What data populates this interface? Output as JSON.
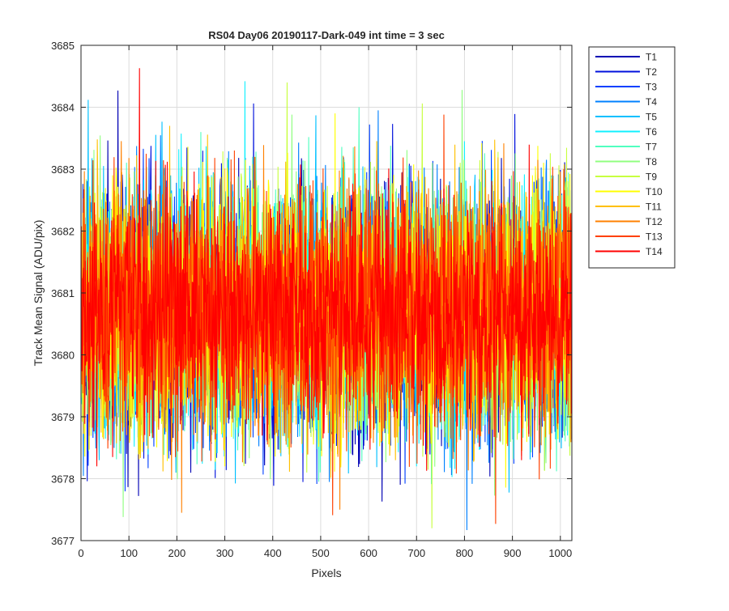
{
  "chart_data": {
    "type": "line",
    "title": "RS04 Day06 20190117-Dark-049 int time = 3 sec",
    "xlabel": "Pixels",
    "ylabel": "Track Mean Signal (ADU/pix)",
    "xlim": [
      0,
      1024
    ],
    "ylim": [
      3677,
      3685
    ],
    "xticks": [
      "0",
      "100",
      "200",
      "300",
      "400",
      "500",
      "600",
      "700",
      "800",
      "900",
      "1000"
    ],
    "yticks": [
      "3677",
      "3678",
      "3679",
      "3680",
      "3681",
      "3682",
      "3683",
      "3684",
      "3685"
    ],
    "grid": true,
    "legend_position": "outside-top-right",
    "series_points": 1024,
    "series": [
      {
        "name": "T1",
        "color": "#0000b4",
        "mean": 3680.7,
        "std": 1.0,
        "spikes": [
          [
            77,
            3684.27
          ],
          [
            95,
            3678.4
          ],
          [
            120,
            3677.72
          ]
        ]
      },
      {
        "name": "T2",
        "color": "#0010dc",
        "mean": 3680.7,
        "std": 1.0,
        "spikes": [
          [
            360,
            3684.06
          ],
          [
            650,
            3683.73
          ],
          [
            905,
            3683.89
          ]
        ]
      },
      {
        "name": "T3",
        "color": "#0040ff",
        "mean": 3680.7,
        "std": 1.0,
        "spikes": [
          [
            140,
            3678.17
          ],
          [
            600,
            3679.0
          ]
        ]
      },
      {
        "name": "T4",
        "color": "#0080ff",
        "mean": 3680.7,
        "std": 1.0,
        "spikes": [
          [
            805,
            3677.17
          ],
          [
            620,
            3683.95
          ]
        ]
      },
      {
        "name": "T5",
        "color": "#00c0ff",
        "mean": 3680.7,
        "std": 1.0,
        "spikes": [
          [
            15,
            3684.12
          ],
          [
            490,
            3683.87
          ]
        ]
      },
      {
        "name": "T6",
        "color": "#10f0ff",
        "mean": 3680.7,
        "std": 1.0,
        "spikes": [
          [
            342,
            3684.42
          ],
          [
            700,
            3678.2
          ]
        ]
      },
      {
        "name": "T7",
        "color": "#50ffc0",
        "mean": 3680.7,
        "std": 1.0,
        "spikes": [
          [
            250,
            3683.6
          ],
          [
            580,
            3684.0
          ]
        ]
      },
      {
        "name": "T8",
        "color": "#90ff80",
        "mean": 3680.7,
        "std": 1.0,
        "spikes": [
          [
            88,
            3677.38
          ],
          [
            795,
            3684.28
          ],
          [
            440,
            3683.88
          ]
        ]
      },
      {
        "name": "T9",
        "color": "#c8ff40",
        "mean": 3680.7,
        "std": 1.0,
        "spikes": [
          [
            732,
            3677.2
          ],
          [
            712,
            3684.06
          ],
          [
            430,
            3684.4
          ]
        ]
      },
      {
        "name": "T10",
        "color": "#ffff00",
        "mean": 3680.7,
        "std": 1.0,
        "spikes": [
          [
            300,
            3678.2
          ],
          [
            530,
            3683.9
          ]
        ]
      },
      {
        "name": "T11",
        "color": "#ffc000",
        "mean": 3680.7,
        "std": 1.0,
        "spikes": [
          [
            185,
            3683.7
          ],
          [
            820,
            3678.3
          ]
        ]
      },
      {
        "name": "T12",
        "color": "#ff8000",
        "mean": 3680.7,
        "std": 1.0,
        "spikes": [
          [
            210,
            3677.45
          ],
          [
            540,
            3677.5
          ]
        ]
      },
      {
        "name": "T13",
        "color": "#ff4000",
        "mean": 3680.7,
        "std": 1.0,
        "spikes": [
          [
            525,
            3677.41
          ],
          [
            865,
            3677.27
          ]
        ]
      },
      {
        "name": "T14",
        "color": "#ff0000",
        "mean": 3680.7,
        "std": 0.9,
        "spikes": [
          [
            122,
            3684.63
          ],
          [
            33,
            3678.2
          ]
        ]
      }
    ]
  }
}
